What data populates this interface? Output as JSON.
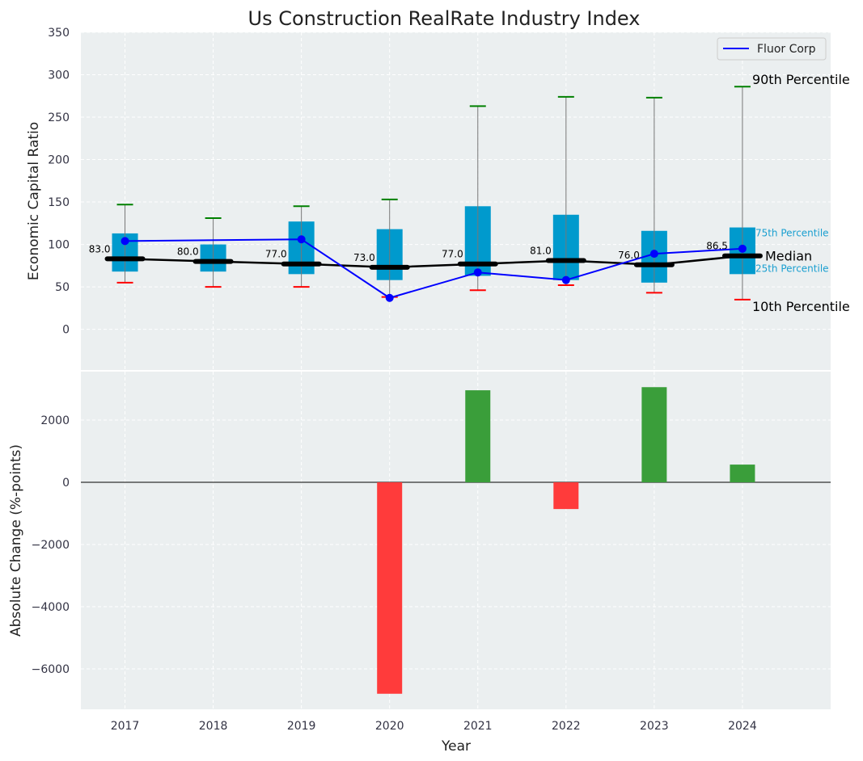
{
  "chart_data": [
    {
      "type": "box",
      "title": "Us Construction RealRate Industry Index",
      "ylabel": "Economic Capital Ratio",
      "ylim": [
        -48,
        350
      ],
      "yticks": [
        0,
        50,
        100,
        150,
        200,
        250,
        300,
        350
      ],
      "grid": true,
      "categories": [
        2017,
        2018,
        2019,
        2020,
        2021,
        2022,
        2023,
        2024
      ],
      "p10": [
        55,
        50,
        50,
        38,
        46,
        52,
        43,
        35
      ],
      "p25": [
        68,
        68,
        65,
        58,
        63,
        58,
        55,
        65
      ],
      "median": [
        83.0,
        80.0,
        77.0,
        73.0,
        77.0,
        81.0,
        76.0,
        86.5
      ],
      "median_labels": [
        "83.0",
        "80.0",
        "77.0",
        "73.0",
        "77.0",
        "81.0",
        "76.0",
        "86.5"
      ],
      "p75": [
        113,
        100,
        127,
        118,
        145,
        135,
        116,
        120
      ],
      "p90": [
        147,
        131,
        145,
        153,
        263,
        274,
        273,
        286
      ],
      "series": [
        {
          "name": "Fluor Corp",
          "values": [
            104,
            null,
            106,
            37,
            67,
            58,
            89,
            95
          ],
          "color": "#0000ff"
        }
      ],
      "legend": "top-right",
      "annotations": {
        "p90": "90th Percentile",
        "p75": "75th Percentile",
        "median": "Median",
        "p25": "25th Percentile",
        "p10": "10th Percentile"
      }
    },
    {
      "type": "bar",
      "xlabel": "Year",
      "ylabel": "Absolute Change (%-points)",
      "ylim": [
        -7300,
        3560
      ],
      "yticks": [
        -6000,
        -4000,
        -2000,
        0,
        2000
      ],
      "ytick_labels": [
        "−6000",
        "−4000",
        "−2000",
        "0",
        "2000"
      ],
      "categories": [
        2017,
        2018,
        2019,
        2020,
        2021,
        2022,
        2023,
        2024
      ],
      "values": [
        null,
        null,
        null,
        -6800,
        2960,
        -860,
        3060,
        570
      ],
      "positive_color": "#3a9e3a",
      "negative_color": "#ff3b3b"
    }
  ]
}
